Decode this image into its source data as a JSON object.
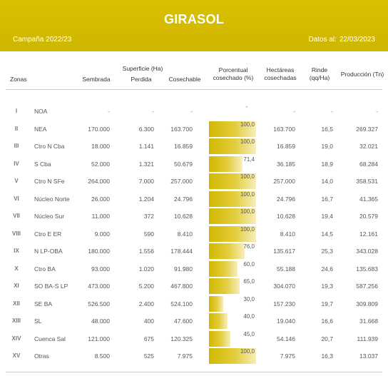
{
  "header": {
    "title": "GIRASOL",
    "campaign": "Campaña 2022/23",
    "date_label": "Datos al:",
    "date_value": "22/03/2023"
  },
  "columns": {
    "zonas": "Zonas",
    "superficie": "Superficie (Ha)",
    "sembrada": "Sembrada",
    "perdida": "Perdida",
    "cosechable": "Cosechable",
    "porcentual_1": "Porcentual",
    "porcentual_2": "cosechado (%)",
    "hectareas_1": "Hectáreas",
    "hectareas_2": "cosechadas",
    "rinde_1": "Rinde",
    "rinde_2": "(qq/Ha)",
    "produccion": "Producción (Tn)"
  },
  "colors": {
    "header_bg": "#d4bc00",
    "bar_gold": "#d2b700",
    "bar_light": "#f7eebd"
  },
  "rows": [
    {
      "num": "I",
      "zona": "NOA",
      "sembrada": "-",
      "perdida": "-",
      "cosechable": "-",
      "porcentual": "-",
      "pct_value": 0,
      "hectareas": "-",
      "rinde": "-",
      "produccion": "-"
    },
    {
      "num": "II",
      "zona": "NEA",
      "sembrada": "170.000",
      "perdida": "6.300",
      "cosechable": "163.700",
      "porcentual": "100,0",
      "pct_value": 100,
      "hectareas": "163.700",
      "rinde": "16,5",
      "produccion": "269.327"
    },
    {
      "num": "III",
      "zona": "Ctro N Cba",
      "sembrada": "18.000",
      "perdida": "1.141",
      "cosechable": "16.859",
      "porcentual": "100,0",
      "pct_value": 100,
      "hectareas": "16.859",
      "rinde": "19,0",
      "produccion": "32.021"
    },
    {
      "num": "IV",
      "zona": "S Cba",
      "sembrada": "52.000",
      "perdida": "1.321",
      "cosechable": "50.679",
      "porcentual": "71,4",
      "pct_value": 71.4,
      "hectareas": "36.185",
      "rinde": "18,9",
      "produccion": "68.284"
    },
    {
      "num": "V",
      "zona": "Ctro N SFe",
      "sembrada": "264.000",
      "perdida": "7.000",
      "cosechable": "257.000",
      "porcentual": "100,0",
      "pct_value": 100,
      "hectareas": "257.000",
      "rinde": "14,0",
      "produccion": "358.531"
    },
    {
      "num": "VI",
      "zona": "Núcleo Norte",
      "sembrada": "26.000",
      "perdida": "1.204",
      "cosechable": "24.796",
      "porcentual": "100,0",
      "pct_value": 100,
      "hectareas": "24.796",
      "rinde": "16,7",
      "produccion": "41.365"
    },
    {
      "num": "VII",
      "zona": "Núcleo Sur",
      "sembrada": "11.000",
      "perdida": "372",
      "cosechable": "10.628",
      "porcentual": "100,0",
      "pct_value": 100,
      "hectareas": "10.628",
      "rinde": "19,4",
      "produccion": "20.579"
    },
    {
      "num": "VIII",
      "zona": "Ctro E ER",
      "sembrada": "9.000",
      "perdida": "590",
      "cosechable": "8.410",
      "porcentual": "100,0",
      "pct_value": 100,
      "hectareas": "8.410",
      "rinde": "14,5",
      "produccion": "12.161"
    },
    {
      "num": "IX",
      "zona": "N LP-OBA",
      "sembrada": "180.000",
      "perdida": "1.556",
      "cosechable": "178.444",
      "porcentual": "76,0",
      "pct_value": 76,
      "hectareas": "135.617",
      "rinde": "25,3",
      "produccion": "343.028"
    },
    {
      "num": "X",
      "zona": "Ctro BA",
      "sembrada": "93.000",
      "perdida": "1.020",
      "cosechable": "91.980",
      "porcentual": "60,0",
      "pct_value": 60,
      "hectareas": "55.188",
      "rinde": "24,6",
      "produccion": "135.683"
    },
    {
      "num": "XI",
      "zona": "SO BA-S LP",
      "sembrada": "473.000",
      "perdida": "5.200",
      "cosechable": "467.800",
      "porcentual": "65,0",
      "pct_value": 65,
      "hectareas": "304.070",
      "rinde": "19,3",
      "produccion": "587.256"
    },
    {
      "num": "XII",
      "zona": "SE BA",
      "sembrada": "526.500",
      "perdida": "2.400",
      "cosechable": "524.100",
      "porcentual": "30,0",
      "pct_value": 30,
      "hectareas": "157.230",
      "rinde": "19,7",
      "produccion": "309.809"
    },
    {
      "num": "XIII",
      "zona": "SL",
      "sembrada": "48.000",
      "perdida": "400",
      "cosechable": "47.600",
      "porcentual": "40,0",
      "pct_value": 40,
      "hectareas": "19.040",
      "rinde": "16,6",
      "produccion": "31.668"
    },
    {
      "num": "XIV",
      "zona": "Cuenca Sal",
      "sembrada": "121.000",
      "perdida": "675",
      "cosechable": "120.325",
      "porcentual": "45,0",
      "pct_value": 45,
      "hectareas": "54.146",
      "rinde": "20,7",
      "produccion": "111.939"
    },
    {
      "num": "XV",
      "zona": "Otras",
      "sembrada": "8.500",
      "perdida": "525",
      "cosechable": "7.975",
      "porcentual": "100,0",
      "pct_value": 100,
      "hectareas": "7.975",
      "rinde": "16,3",
      "produccion": "13.037"
    }
  ]
}
